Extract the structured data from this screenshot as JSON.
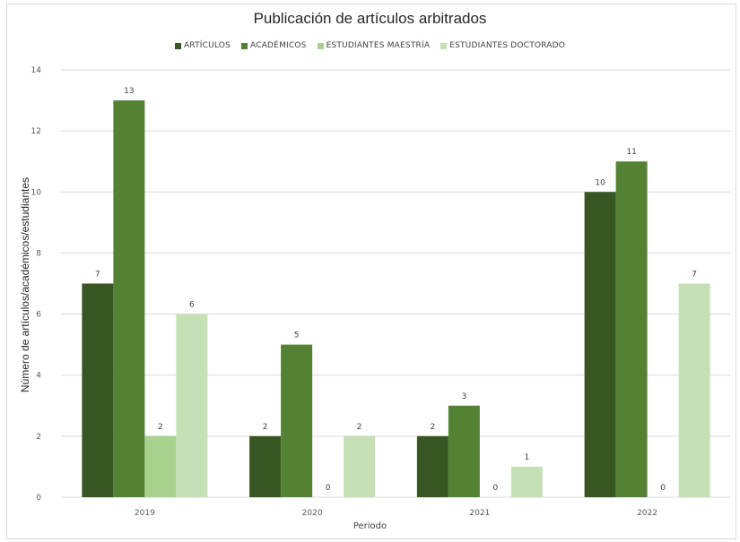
{
  "chart_data": {
    "type": "bar",
    "title": "Publicación de artículos arbitrados",
    "xlabel": "Periodo",
    "ylabel": "Número de  artículos/académicos/estudiantes",
    "categories": [
      "2019",
      "2020",
      "2021",
      "2022"
    ],
    "ylim": [
      0,
      14
    ],
    "yticks": [
      0,
      2,
      4,
      6,
      8,
      10,
      12,
      14
    ],
    "grid": true,
    "legend_position": "top",
    "series": [
      {
        "name": "ARTÍCULOS",
        "color": "#375623",
        "values": [
          7,
          2,
          2,
          10
        ]
      },
      {
        "name": "ACADÉMICOS",
        "color": "#548235",
        "values": [
          13,
          5,
          3,
          11
        ]
      },
      {
        "name": "ESTUDIANTES MAESTRÍA",
        "color": "#a9d18e",
        "values": [
          2,
          0,
          0,
          0
        ]
      },
      {
        "name": "ESTUDIANTES DOCTORADO",
        "color": "#c5e0b4",
        "values": [
          6,
          2,
          1,
          7
        ]
      }
    ]
  }
}
